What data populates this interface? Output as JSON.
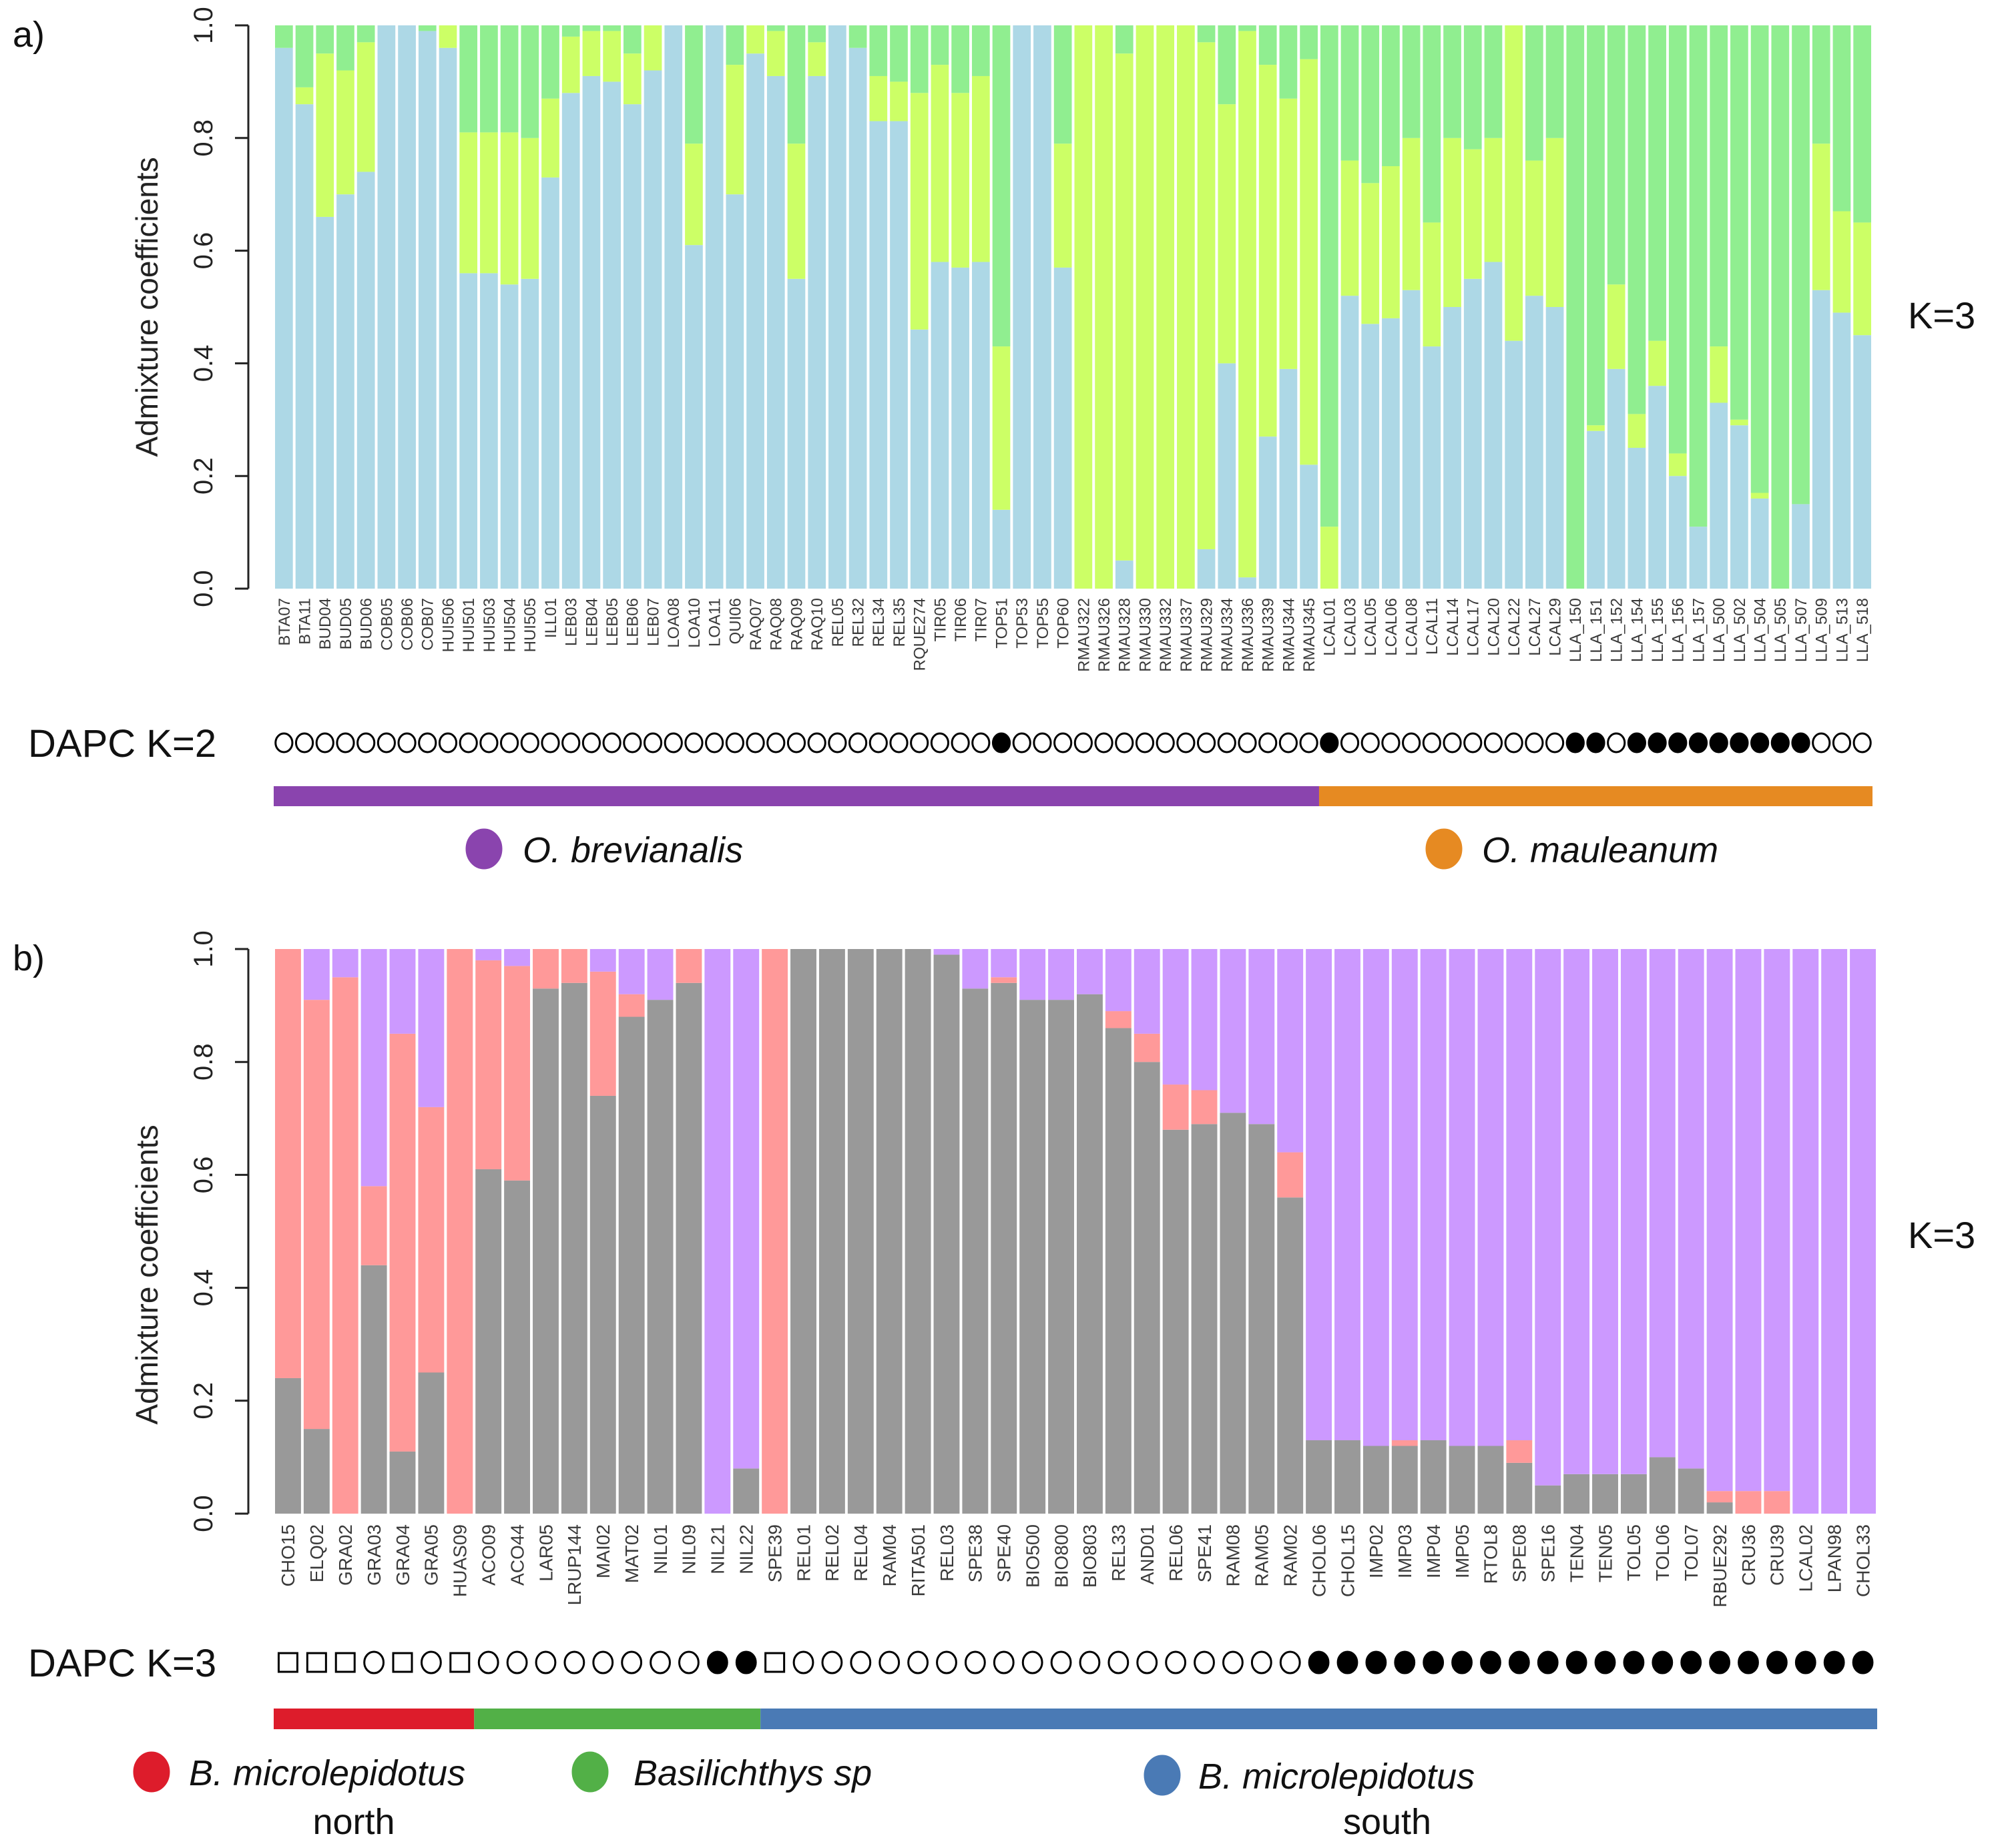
{
  "chart_data": [
    {
      "panel_label": "a)",
      "type": "bar",
      "stacked": true,
      "ylabel": "Admixture coefficients",
      "ylim": [
        0,
        1
      ],
      "yticks": [
        "0.0",
        "0.2",
        "0.4",
        "0.6",
        "0.8",
        "1.0"
      ],
      "k_label": "K=3",
      "categories": [
        "BTA07",
        "BTA11",
        "BUD04",
        "BUD05",
        "BUD06",
        "COB05",
        "COB06",
        "COB07",
        "HUI506",
        "HUI501",
        "HUI503",
        "HUI504",
        "HUI505",
        "ILL01",
        "LEB03",
        "LEB04",
        "LEB05",
        "LEB06",
        "LEB07",
        "LOA08",
        "LOA10",
        "LOA11",
        "QUI06",
        "RAQ07",
        "RAQ08",
        "RAQ09",
        "RAQ10",
        "REL05",
        "REL32",
        "REL34",
        "REL35",
        "RQUE274",
        "TIR05",
        "TIR06",
        "TIR07",
        "TOP51",
        "TOP53",
        "TOP55",
        "TOP60",
        "RMAU322",
        "RMAU326",
        "RMAU328",
        "RMAU330",
        "RMAU332",
        "RMAU337",
        "RMAU329",
        "RMAU334",
        "RMAU336",
        "RMAU339",
        "RMAU344",
        "RMAU345",
        "LCAL01",
        "LCAL03",
        "LCAL05",
        "LCAL06",
        "LCAL08",
        "LCAL11",
        "LCAL14",
        "LCAL17",
        "LCAL20",
        "LCAL22",
        "LCAL27",
        "LCAL29",
        "LLA_150",
        "LLA_151",
        "LLA_152",
        "LLA_154",
        "LLA_155",
        "LLA_156",
        "LLA_157",
        "LLA_500",
        "LLA_502",
        "LLA_504",
        "LLA_505",
        "LLA_507",
        "LLA_509",
        "LLA_513",
        "LLA_518"
      ],
      "series": [
        {
          "color": "#ADD8E6",
          "values": [
            0.96,
            0.86,
            0.66,
            0.7,
            0.74,
            1,
            1,
            0.99,
            0.96,
            0.56,
            0.56,
            0.54,
            0.55,
            0.73,
            0.88,
            0.91,
            0.9,
            0.86,
            0.92,
            1,
            0.61,
            1,
            0.7,
            0.95,
            0.91,
            0.55,
            0.91,
            1,
            0.96,
            0.83,
            0.83,
            0.46,
            0.58,
            0.57,
            0.58,
            0.14,
            1,
            1,
            0.57,
            0,
            0,
            0.05,
            0,
            0,
            0,
            0.07,
            0.4,
            0.02,
            0.27,
            0.39,
            0.22,
            0,
            0.52,
            0.47,
            0.48,
            0.53,
            0.43,
            0.5,
            0.55,
            0.58,
            0.44,
            0.52,
            0.5,
            0,
            0.28,
            0.39,
            0.25,
            0.36,
            0.2,
            0.11,
            0.33,
            0.29,
            0.16,
            0,
            0.15,
            0.53,
            0.49,
            0.45
          ]
        },
        {
          "color": "#CCFF66",
          "values": [
            0,
            0.03,
            0.29,
            0.22,
            0.23,
            0,
            0,
            0,
            0.04,
            0.25,
            0.25,
            0.27,
            0.25,
            0.14,
            0.1,
            0.08,
            0.09,
            0.09,
            0.08,
            0,
            0.18,
            0,
            0.23,
            0.05,
            0.08,
            0.24,
            0.06,
            0,
            0,
            0.08,
            0.07,
            0.42,
            0.35,
            0.31,
            0.33,
            0.29,
            0,
            0,
            0.22,
            1,
            1,
            0.9,
            1,
            1,
            1,
            0.9,
            0.46,
            0.97,
            0.66,
            0.48,
            0.72,
            0.11,
            0.24,
            0.25,
            0.27,
            0.27,
            0.22,
            0.3,
            0.23,
            0.22,
            0.56,
            0.24,
            0.3,
            0,
            0.01,
            0.15,
            0.06,
            0.08,
            0.04,
            0,
            0.1,
            0.01,
            0.01,
            0,
            0,
            0.26,
            0.18,
            0.2
          ]
        },
        {
          "color": "#90EE90",
          "values": [
            0.04,
            0.11,
            0.05,
            0.08,
            0.03,
            0,
            0,
            0.01,
            0,
            0.19,
            0.19,
            0.19,
            0.2,
            0.13,
            0.02,
            0.01,
            0.01,
            0.05,
            0,
            0,
            0.21,
            0,
            0.07,
            0,
            0.01,
            0.21,
            0.03,
            0,
            0.04,
            0.09,
            0.1,
            0.12,
            0.07,
            0.12,
            0.09,
            0.57,
            0,
            0,
            0.21,
            0,
            0,
            0.05,
            0,
            0,
            0,
            0.03,
            0.14,
            0.01,
            0.07,
            0.13,
            0.06,
            0.89,
            0.24,
            0.28,
            0.25,
            0.2,
            0.35,
            0.2,
            0.22,
            0.2,
            0,
            0.24,
            0.2,
            1,
            0.71,
            0.46,
            0.69,
            0.56,
            0.76,
            0.89,
            0.57,
            0.7,
            0.83,
            1,
            0.85,
            0.21,
            0.33,
            0.35
          ]
        }
      ],
      "dapc": {
        "label": "DAPC K=2",
        "symbols": "○○○○○○○○○○○○○○○○○○○○○○○○○○○○○○○○○○○●○○○○○○○○○○○○○○○●○○○○○○○○○○○●●○●●●●●●●●●○○○"
      },
      "groups": [
        {
          "name": "O. brevianalis",
          "color": "#8A44AE",
          "first": "BTA07",
          "last": "RMAU345"
        },
        {
          "name": "O. mauleanum",
          "color": "#E68A22",
          "first": "LCAL01",
          "last": "LLA_518"
        }
      ]
    },
    {
      "panel_label": "b)",
      "type": "bar",
      "stacked": true,
      "ylabel": "Admixture coefficients",
      "ylim": [
        0,
        1
      ],
      "yticks": [
        "0.0",
        "0.2",
        "0.4",
        "0.6",
        "0.8",
        "1.0"
      ],
      "k_label": "K=3",
      "categories": [
        "CHO15",
        "ELQ02",
        "GRA02",
        "GRA03",
        "GRA04",
        "GRA05",
        "HUAS09",
        "ACO09",
        "ACO44",
        "LAR05",
        "LRUP144",
        "MAI02",
        "MAT02",
        "NIL01",
        "NIL09",
        "NIL21",
        "NIL22",
        "SPE39",
        "REL01",
        "REL02",
        "REL04",
        "RAM04",
        "RITA501",
        "REL03",
        "SPE38",
        "SPE40",
        "BIO500",
        "BIO800",
        "BIO803",
        "REL33",
        "AND01",
        "REL06",
        "SPE41",
        "RAM08",
        "RAM05",
        "RAM02",
        "CHOL06",
        "CHOL15",
        "IMP02",
        "IMP03",
        "IMP04",
        "IMP05",
        "RTOL8",
        "SPE08",
        "SPE16",
        "TEN04",
        "TEN05",
        "TOL05",
        "TOL06",
        "TOL07",
        "RBUE292",
        "CRU36",
        "CRU39",
        "LCAL02",
        "LPAN98",
        "CHOL33"
      ],
      "series": [
        {
          "color": "#999999",
          "values": [
            0.24,
            0.15,
            0,
            0.44,
            0.11,
            0.25,
            0,
            0.61,
            0.59,
            0.93,
            0.94,
            0.74,
            0.88,
            0.91,
            0.94,
            0,
            0.08,
            0,
            1,
            1,
            1,
            1,
            1,
            0.99,
            0.93,
            0.94,
            0.91,
            0.91,
            0.92,
            0.86,
            0.8,
            0.68,
            0.69,
            0.71,
            0.69,
            0.56,
            0.13,
            0.13,
            0.12,
            0.12,
            0.13,
            0.12,
            0.12,
            0.09,
            0.05,
            0.07,
            0.07,
            0.07,
            0.1,
            0.08,
            0.02,
            0,
            0,
            0,
            0,
            0
          ]
        },
        {
          "color": "#FF9999",
          "values": [
            0.76,
            0.76,
            0.95,
            0.14,
            0.74,
            0.47,
            1,
            0.37,
            0.38,
            0.07,
            0.06,
            0.22,
            0.04,
            0,
            0.06,
            0,
            0,
            1,
            0,
            0,
            0,
            0,
            0,
            0,
            0,
            0.01,
            0,
            0,
            0,
            0.03,
            0.05,
            0.08,
            0.06,
            0,
            0,
            0.08,
            0,
            0,
            0,
            0.01,
            0,
            0,
            0,
            0.04,
            0,
            0,
            0,
            0,
            0,
            0,
            0.02,
            0.04,
            0.04,
            0,
            0,
            0
          ]
        },
        {
          "color": "#CC99FF",
          "values": [
            0,
            0.09,
            0.05,
            0.42,
            0.15,
            0.28,
            0,
            0.02,
            0.03,
            0,
            0,
            0.04,
            0.08,
            0.09,
            0,
            1,
            0.92,
            0,
            0,
            0,
            0,
            0,
            0,
            0.01,
            0.07,
            0.05,
            0.09,
            0.09,
            0.08,
            0.11,
            0.15,
            0.24,
            0.25,
            0.29,
            0.31,
            0.36,
            0.87,
            0.87,
            0.88,
            0.87,
            0.87,
            0.88,
            0.88,
            0.87,
            0.95,
            0.93,
            0.93,
            0.93,
            0.9,
            0.92,
            0.96,
            0.96,
            0.96,
            1,
            1,
            1
          ]
        }
      ],
      "dapc": {
        "label": "DAPC K=3",
        "symbols": "□□□○□○□○○○○○○○○●●□○○○○○○○○○○○○○○○○○○●●●●●●●●●●●●●●●●●●●●"
      },
      "groups": [
        {
          "name": "B. microlepidotus",
          "line2": "north",
          "color": "#DD1C2B",
          "first": "CHO15",
          "last": "HUAS09"
        },
        {
          "name": "Basilichthys sp",
          "line2": "",
          "color": "#52B047",
          "first": "ACO09",
          "last": "NIL22"
        },
        {
          "name": "B. microlepidotus",
          "line2": "south",
          "color": "#4A7AB5",
          "first": "SPE39",
          "last": "CHOL33"
        }
      ]
    }
  ]
}
